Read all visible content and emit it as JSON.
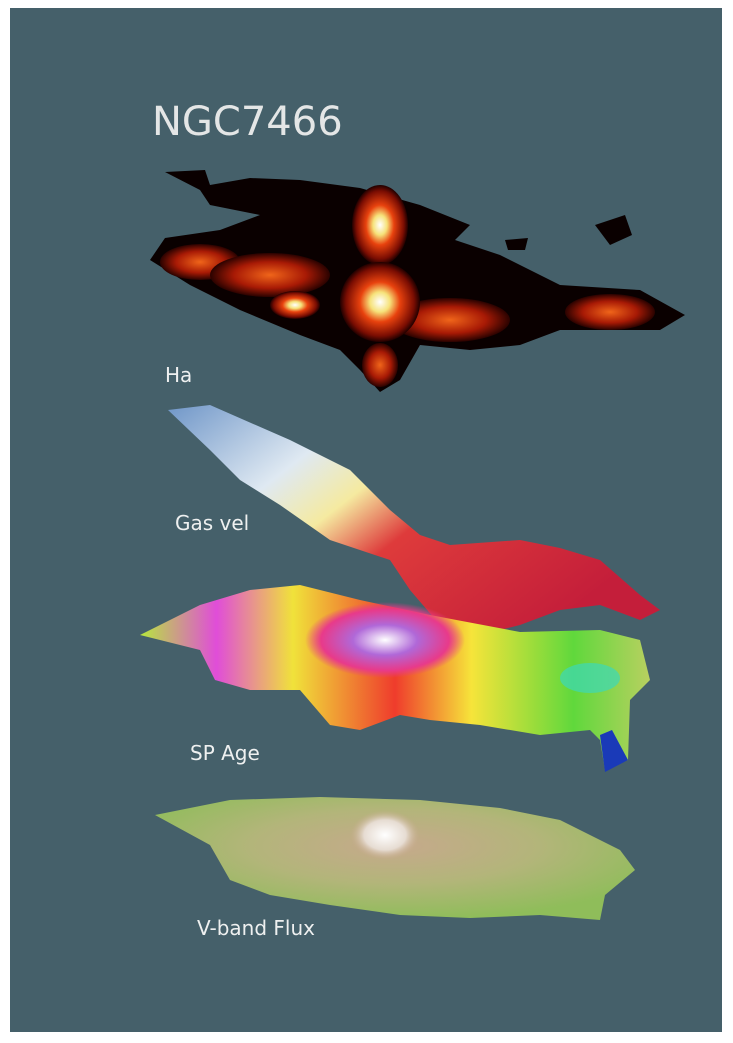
{
  "title": "NGC7466",
  "layers": [
    {
      "label": "Ha"
    },
    {
      "label": "Gas vel"
    },
    {
      "label": "SP Age"
    },
    {
      "label": "V-band Flux"
    }
  ]
}
